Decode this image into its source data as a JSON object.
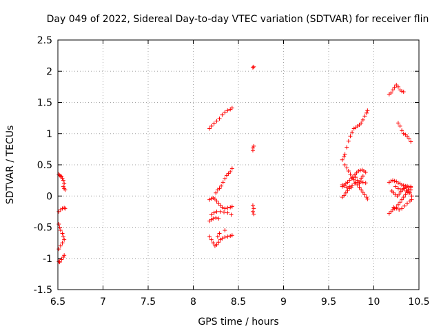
{
  "chart_data": {
    "type": "scatter",
    "title": "Day 049 of 2022, Sidereal Day-to-day VTEC variation (SDTVAR) for receiver flin",
    "xlabel": "GPS time / hours",
    "ylabel": "SDTVAR / TECUs",
    "xlim": [
      6.5,
      10.5
    ],
    "ylim": [
      -1.5,
      2.5
    ],
    "xticks": [
      "6.5",
      "7",
      "7.5",
      "8",
      "8.5",
      "9",
      "9.5",
      "10",
      "10.5"
    ],
    "yticks": [
      "-1.5",
      "-1",
      "-0.5",
      "0",
      "0.5",
      "1",
      "1.5",
      "2",
      "2.5"
    ],
    "grid": true,
    "marker": "+",
    "color": "#ff0000",
    "series": [
      {
        "values": [
          [
            6.51,
            0.35
          ],
          [
            6.52,
            0.33
          ],
          [
            6.53,
            0.32
          ],
          [
            6.54,
            0.31
          ],
          [
            6.55,
            0.28
          ],
          [
            6.56,
            0.25
          ],
          [
            6.57,
            0.2
          ],
          [
            6.56,
            0.15
          ],
          [
            6.57,
            0.12
          ],
          [
            6.58,
            0.1
          ],
          [
            6.51,
            -0.25
          ],
          [
            6.53,
            -0.22
          ],
          [
            6.55,
            -0.2
          ],
          [
            6.57,
            -0.19
          ],
          [
            6.58,
            -0.2
          ],
          [
            6.51,
            -0.45
          ],
          [
            6.52,
            -0.5
          ],
          [
            6.53,
            -0.55
          ],
          [
            6.55,
            -0.6
          ],
          [
            6.56,
            -0.65
          ],
          [
            6.57,
            -0.7
          ],
          [
            6.55,
            -0.75
          ],
          [
            6.53,
            -0.8
          ],
          [
            6.51,
            -0.85
          ],
          [
            6.51,
            -1.05
          ],
          [
            6.52,
            -1.06
          ],
          [
            6.54,
            -1.02
          ],
          [
            6.56,
            -0.98
          ],
          [
            6.57,
            -0.95
          ],
          [
            8.18,
            1.08
          ],
          [
            8.2,
            1.12
          ],
          [
            8.23,
            1.16
          ],
          [
            8.26,
            1.2
          ],
          [
            8.29,
            1.24
          ],
          [
            8.32,
            1.3
          ],
          [
            8.35,
            1.34
          ],
          [
            8.38,
            1.37
          ],
          [
            8.41,
            1.39
          ],
          [
            8.43,
            1.41
          ],
          [
            8.18,
            -0.06
          ],
          [
            8.2,
            -0.04
          ],
          [
            8.22,
            -0.03
          ],
          [
            8.24,
            -0.05
          ],
          [
            8.26,
            -0.08
          ],
          [
            8.28,
            -0.12
          ],
          [
            8.3,
            -0.15
          ],
          [
            8.32,
            -0.18
          ],
          [
            8.35,
            -0.2
          ],
          [
            8.38,
            -0.19
          ],
          [
            8.41,
            -0.18
          ],
          [
            8.43,
            -0.17
          ],
          [
            8.2,
            -0.3
          ],
          [
            8.23,
            -0.27
          ],
          [
            8.26,
            -0.25
          ],
          [
            8.3,
            -0.25
          ],
          [
            8.34,
            -0.26
          ],
          [
            8.38,
            -0.27
          ],
          [
            8.42,
            -0.3
          ],
          [
            8.18,
            -0.4
          ],
          [
            8.2,
            -0.38
          ],
          [
            8.22,
            -0.36
          ],
          [
            8.25,
            -0.35
          ],
          [
            8.28,
            -0.36
          ],
          [
            8.25,
            0.05
          ],
          [
            8.27,
            0.1
          ],
          [
            8.29,
            0.12
          ],
          [
            8.31,
            0.16
          ],
          [
            8.33,
            0.22
          ],
          [
            8.35,
            0.28
          ],
          [
            8.37,
            0.33
          ],
          [
            8.39,
            0.36
          ],
          [
            8.41,
            0.39
          ],
          [
            8.43,
            0.44
          ],
          [
            8.18,
            -0.65
          ],
          [
            8.2,
            -0.7
          ],
          [
            8.22,
            -0.75
          ],
          [
            8.24,
            -0.8
          ],
          [
            8.26,
            -0.78
          ],
          [
            8.28,
            -0.74
          ],
          [
            8.3,
            -0.7
          ],
          [
            8.32,
            -0.68
          ],
          [
            8.35,
            -0.66
          ],
          [
            8.38,
            -0.65
          ],
          [
            8.41,
            -0.64
          ],
          [
            8.43,
            -0.63
          ],
          [
            8.35,
            -0.55
          ],
          [
            8.27,
            -0.65
          ],
          [
            8.29,
            -0.6
          ],
          [
            8.66,
            2.06
          ],
          [
            8.67,
            2.07
          ],
          [
            8.66,
            0.73
          ],
          [
            8.66,
            0.77
          ],
          [
            8.67,
            0.8
          ],
          [
            8.66,
            -0.15
          ],
          [
            8.67,
            -0.2
          ],
          [
            8.66,
            -0.25
          ],
          [
            8.67,
            -0.29
          ],
          [
            9.65,
            0.58
          ],
          [
            9.67,
            0.63
          ],
          [
            9.68,
            0.67
          ],
          [
            9.7,
            0.78
          ],
          [
            9.72,
            0.88
          ],
          [
            9.74,
            0.96
          ],
          [
            9.76,
            1.02
          ],
          [
            9.78,
            1.08
          ],
          [
            9.8,
            1.1
          ],
          [
            9.82,
            1.12
          ],
          [
            9.84,
            1.14
          ],
          [
            9.86,
            1.17
          ],
          [
            9.88,
            1.22
          ],
          [
            9.9,
            1.28
          ],
          [
            9.92,
            1.33
          ],
          [
            9.93,
            1.37
          ],
          [
            9.65,
            0.15
          ],
          [
            9.67,
            0.18
          ],
          [
            9.69,
            0.2
          ],
          [
            9.71,
            0.22
          ],
          [
            9.73,
            0.25
          ],
          [
            9.75,
            0.28
          ],
          [
            9.77,
            0.3
          ],
          [
            9.79,
            0.34
          ],
          [
            9.81,
            0.37
          ],
          [
            9.83,
            0.4
          ],
          [
            9.85,
            0.41
          ],
          [
            9.87,
            0.42
          ],
          [
            9.89,
            0.4
          ],
          [
            9.91,
            0.38
          ],
          [
            9.65,
            0.18
          ],
          [
            9.67,
            0.16
          ],
          [
            9.7,
            0.14
          ],
          [
            9.73,
            0.15
          ],
          [
            9.76,
            0.17
          ],
          [
            9.79,
            0.2
          ],
          [
            9.82,
            0.22
          ],
          [
            9.85,
            0.23
          ],
          [
            9.88,
            0.22
          ],
          [
            9.91,
            0.21
          ],
          [
            9.65,
            -0.02
          ],
          [
            9.67,
            0.01
          ],
          [
            9.69,
            0.05
          ],
          [
            9.71,
            0.09
          ],
          [
            9.73,
            0.12
          ],
          [
            9.75,
            0.14
          ],
          [
            9.68,
            0.5
          ],
          [
            9.7,
            0.45
          ],
          [
            9.72,
            0.4
          ],
          [
            9.74,
            0.35
          ],
          [
            9.76,
            0.3
          ],
          [
            9.78,
            0.26
          ],
          [
            9.8,
            0.22
          ],
          [
            9.82,
            0.18
          ],
          [
            9.84,
            0.14
          ],
          [
            9.86,
            0.1
          ],
          [
            9.88,
            0.06
          ],
          [
            9.9,
            0.02
          ],
          [
            9.92,
            -0.02
          ],
          [
            9.93,
            -0.05
          ],
          [
            9.8,
            0.3
          ],
          [
            9.82,
            0.25
          ],
          [
            9.84,
            0.2
          ],
          [
            9.86,
            0.28
          ],
          [
            9.88,
            0.32
          ],
          [
            10.17,
            1.63
          ],
          [
            10.19,
            1.65
          ],
          [
            10.21,
            1.7
          ],
          [
            10.23,
            1.74
          ],
          [
            10.25,
            1.78
          ],
          [
            10.27,
            1.75
          ],
          [
            10.29,
            1.7
          ],
          [
            10.31,
            1.68
          ],
          [
            10.33,
            1.67
          ],
          [
            10.27,
            1.17
          ],
          [
            10.29,
            1.12
          ],
          [
            10.31,
            1.05
          ],
          [
            10.33,
            1.0
          ],
          [
            10.35,
            0.98
          ],
          [
            10.37,
            0.96
          ],
          [
            10.39,
            0.92
          ],
          [
            10.41,
            0.87
          ],
          [
            10.17,
            0.22
          ],
          [
            10.19,
            0.24
          ],
          [
            10.21,
            0.25
          ],
          [
            10.23,
            0.24
          ],
          [
            10.25,
            0.23
          ],
          [
            10.27,
            0.21
          ],
          [
            10.29,
            0.2
          ],
          [
            10.31,
            0.18
          ],
          [
            10.33,
            0.17
          ],
          [
            10.35,
            0.16
          ],
          [
            10.37,
            0.16
          ],
          [
            10.39,
            0.15
          ],
          [
            10.41,
            0.14
          ],
          [
            10.2,
            0.08
          ],
          [
            10.22,
            0.05
          ],
          [
            10.24,
            0.02
          ],
          [
            10.26,
            0.0
          ],
          [
            10.28,
            0.03
          ],
          [
            10.3,
            0.07
          ],
          [
            10.32,
            0.1
          ],
          [
            10.34,
            0.12
          ],
          [
            10.36,
            0.14
          ],
          [
            10.38,
            0.1
          ],
          [
            10.4,
            0.05
          ],
          [
            10.42,
            0.0
          ],
          [
            10.17,
            -0.28
          ],
          [
            10.19,
            -0.25
          ],
          [
            10.21,
            -0.22
          ],
          [
            10.23,
            -0.2
          ],
          [
            10.25,
            -0.18
          ],
          [
            10.27,
            -0.14
          ],
          [
            10.29,
            -0.1
          ],
          [
            10.31,
            -0.06
          ],
          [
            10.33,
            -0.02
          ],
          [
            10.35,
            0.02
          ],
          [
            10.37,
            0.06
          ],
          [
            10.39,
            0.1
          ],
          [
            10.41,
            0.15
          ],
          [
            10.22,
            -0.18
          ],
          [
            10.25,
            -0.2
          ],
          [
            10.28,
            -0.22
          ],
          [
            10.31,
            -0.2
          ],
          [
            10.34,
            -0.16
          ],
          [
            10.37,
            -0.12
          ],
          [
            10.4,
            -0.08
          ],
          [
            10.42,
            -0.06
          ],
          [
            10.24,
            0.15
          ],
          [
            10.27,
            0.12
          ],
          [
            10.3,
            0.1
          ],
          [
            10.33,
            0.12
          ],
          [
            10.36,
            0.08
          ],
          [
            10.39,
            0.05
          ],
          [
            10.41,
            0.1
          ]
        ]
      }
    ]
  }
}
